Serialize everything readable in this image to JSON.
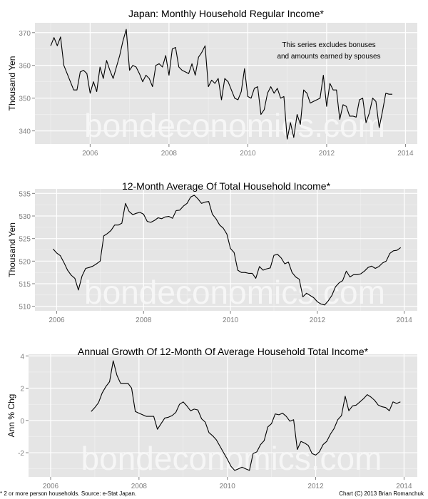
{
  "footer": {
    "note": "* 2 or more person households. Source: e-Stat Japan.",
    "credit": "Chart (C) 2013 Brian Romanchuk"
  },
  "watermark": "bondeconomics.com",
  "colors": {
    "panel_bg": "#e5e5e5",
    "grid_major": "#ffffff",
    "grid_minor": "#f2f2f2",
    "line": "#000000",
    "tick_label": "#7f7f7f",
    "watermark": "#f7f7f7"
  },
  "chart_data": [
    {
      "type": "line",
      "title": "Japan: Monthly Household Regular Income*",
      "xlabel": "",
      "ylabel": "Thousand Yen",
      "annotation": [
        "This series excludes bonuses",
        "and amounts earned by spouses"
      ],
      "x_ticks": [
        "2006",
        "2008",
        "2010",
        "2012",
        "2014"
      ],
      "y_ticks": [
        "340",
        "350",
        "360",
        "370"
      ],
      "ylim": [
        336,
        373
      ],
      "xlim": [
        2004.6,
        2014.3
      ],
      "grid": true,
      "series": [
        {
          "name": "Monthly Household Regular Income",
          "x_start": 2005.0,
          "x_step": 0.08333,
          "values": [
            366,
            368.5,
            366,
            368.7,
            360,
            357.5,
            355,
            352.5,
            352.5,
            358,
            358.5,
            357.5,
            351.5,
            355,
            352,
            359.5,
            356,
            361.5,
            358.5,
            356,
            359.5,
            363,
            367.5,
            371,
            358.5,
            360,
            359.5,
            357.5,
            355,
            357,
            356,
            353.5,
            360,
            360.5,
            359.5,
            363,
            357,
            365,
            365.5,
            359.5,
            358.5,
            358,
            357.5,
            360.5,
            357,
            362.5,
            364,
            366,
            353.5,
            355.5,
            354.5,
            356,
            349.5,
            356,
            355,
            352.5,
            350,
            349.5,
            352,
            359,
            350.5,
            350,
            353,
            353.5,
            345,
            346.5,
            351.5,
            353.5,
            351.5,
            353,
            350,
            350.5,
            337.5,
            342.5,
            338,
            345,
            342,
            352.5,
            351.5,
            348.5,
            349,
            349.5,
            350,
            357,
            347.5,
            354.5,
            352.5,
            352.5,
            343.5,
            348,
            347.5,
            344.5,
            344.5,
            344.2,
            349.5,
            350,
            342.5,
            345.5,
            350,
            349,
            341,
            346,
            351.5,
            351.2,
            351.2
          ]
        }
      ]
    },
    {
      "type": "line",
      "title": "12-Month Average Of Total Household Income*",
      "xlabel": "",
      "ylabel": "Thousand Yen",
      "x_ticks": [
        "2006",
        "2008",
        "2010",
        "2012",
        "2014"
      ],
      "y_ticks": [
        "510",
        "515",
        "520",
        "525",
        "530",
        "535"
      ],
      "ylim": [
        509,
        536
      ],
      "xlim": [
        2005.5,
        2014.3
      ],
      "grid": true,
      "series": [
        {
          "name": "12-Month Average Total Household Income",
          "x_start": 2005.917,
          "x_step": 0.08333,
          "values": [
            522.7,
            521.8,
            521.2,
            519.7,
            518,
            516.9,
            516.2,
            513.6,
            516.7,
            518.4,
            518.6,
            518.9,
            519.4,
            520,
            525.6,
            526.1,
            526.8,
            528,
            528,
            528.4,
            532.8,
            531,
            530.3,
            530.6,
            530.8,
            530.4,
            528.8,
            528.6,
            529,
            529.6,
            529.4,
            529.8,
            529.9,
            529.5,
            531.2,
            531.3,
            532.2,
            532.8,
            534.2,
            534.6,
            533.8,
            532.8,
            533.1,
            533.2,
            530.4,
            529.4,
            528,
            527.3,
            526,
            522.8,
            521.9,
            518,
            517.5,
            517.5,
            517.3,
            517.3,
            516.2,
            518.8,
            518,
            518.3,
            518.5,
            521.3,
            521.5,
            520.7,
            519.4,
            519.8,
            517.5,
            516.5,
            516,
            512.1,
            512.9,
            512.4,
            511.9,
            511,
            510.5,
            510.3,
            511.2,
            512.4,
            514.3,
            515.2,
            515.7,
            517.8,
            516.5,
            517,
            517,
            517.2,
            517.8,
            518.6,
            518.9,
            518.4,
            518.8,
            519.6,
            520,
            521.7,
            522.3,
            522.4,
            523
          ]
        }
      ]
    },
    {
      "type": "line",
      "title": "Annual Growth Of 12-Month Of Average Household Total Income*",
      "xlabel": "",
      "ylabel": "Ann % Chg",
      "x_ticks": [
        "2006",
        "2008",
        "2010",
        "2012",
        "2014"
      ],
      "y_ticks": [
        "-2",
        "0",
        "2",
        "4"
      ],
      "ylim": [
        -3.5,
        4.1
      ],
      "xlim": [
        2005.5,
        2014.3
      ],
      "grid": true,
      "series": [
        {
          "name": "Annual % Change",
          "x_start": 2006.917,
          "x_step": 0.08333,
          "values": [
            0.55,
            0.8,
            1.1,
            1.7,
            2.1,
            2.4,
            3.7,
            2.8,
            2.3,
            2.3,
            2.3,
            2.0,
            0.55,
            0.45,
            0.35,
            0.25,
            0.25,
            0.25,
            -0.55,
            -0.2,
            0.15,
            0.2,
            0.3,
            0.5,
            1.0,
            1.15,
            0.9,
            0.6,
            0.7,
            0.65,
            0.1,
            -0.1,
            -0.75,
            -0.95,
            -1.2,
            -1.6,
            -2.0,
            -2.4,
            -2.85,
            -3.1,
            -3.0,
            -2.9,
            -3.0,
            -3.1,
            -2.05,
            -1.95,
            -1.5,
            -1.25,
            -0.4,
            -0.2,
            0.4,
            0.35,
            0.45,
            0.25,
            -0.05,
            0.05,
            -1.8,
            -1.3,
            -1.4,
            -1.55,
            -2.05,
            -2.15,
            -1.95,
            -1.5,
            -1.3,
            -0.85,
            -0.5,
            0.05,
            0.3,
            1.5,
            0.6,
            0.9,
            0.95,
            1.15,
            1.35,
            1.6,
            1.45,
            1.25,
            0.95,
            0.85,
            0.8,
            0.6,
            1.15,
            1.05,
            1.15
          ]
        }
      ]
    }
  ]
}
